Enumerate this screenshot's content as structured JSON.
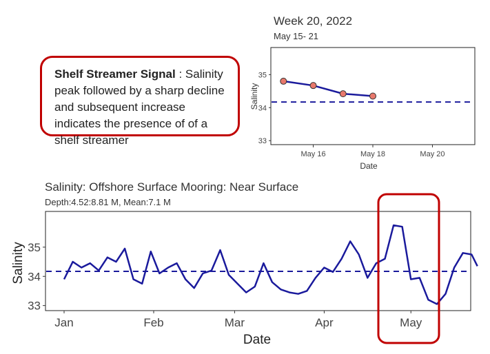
{
  "callout": {
    "title": "Shelf Streamer Signal",
    "text": " : Salinity peak followed by a sharp decline and subsequent increase indicates the presence of of a shelf streamer"
  },
  "chart_data": [
    {
      "type": "line",
      "title": "Week 20, 2022",
      "subtitle": "May 15- 21",
      "xlabel": "Date",
      "ylabel": "Salinity",
      "x_ticks": [
        "May 16",
        "May 18",
        "May 20"
      ],
      "y_ticks": [
        "33",
        "34",
        "35"
      ],
      "ylim": [
        32.9,
        35.8
      ],
      "xlim": [
        14.6,
        21.4
      ],
      "grid": false,
      "line_color": "#1a1a9c",
      "point_color": "#e8786c",
      "series": [
        {
          "x": [
            15.0,
            16.0,
            17.0,
            18.0
          ],
          "y": [
            34.8,
            34.67,
            34.42,
            34.35
          ]
        }
      ],
      "mean_line": 34.17
    },
    {
      "type": "line",
      "title": "Salinity: Offshore Surface Mooring: Near Surface",
      "subtitle": "Depth:4.52:8.81 M, Mean:7.1 M",
      "xlabel": "Date",
      "ylabel": "Salinity",
      "x_ticks": [
        "Jan",
        "Feb",
        "Mar",
        "Apr",
        "May"
      ],
      "y_ticks": [
        "33",
        "34",
        "35"
      ],
      "ylim": [
        32.85,
        36.2
      ],
      "grid": false,
      "line_color": "#1a1a9c",
      "highlight": "May",
      "highlight_color": "#c00000",
      "mean_line": 34.17,
      "series": [
        {
          "x": [
            "Jan 1",
            "Jan 4",
            "Jan 7",
            "Jan 10",
            "Jan 13",
            "Jan 16",
            "Jan 19",
            "Jan 22",
            "Jan 25",
            "Jan 28",
            "Jan 31",
            "Feb 3",
            "Feb 6",
            "Feb 9",
            "Feb 12",
            "Feb 15",
            "Feb 18",
            "Feb 21",
            "Feb 24",
            "Feb 27",
            "Mar 2",
            "Mar 5",
            "Mar 8",
            "Mar 11",
            "Mar 14",
            "Mar 17",
            "Mar 20",
            "Mar 23",
            "Mar 26",
            "Mar 29",
            "Apr 1",
            "Apr 4",
            "Apr 7",
            "Apr 10",
            "Apr 13",
            "Apr 16",
            "Apr 19",
            "Apr 22",
            "Apr 25",
            "Apr 28",
            "May 1",
            "May 4",
            "May 7",
            "May 10",
            "May 13",
            "May 16",
            "May 19",
            "May 22",
            "May 24"
          ],
          "y": [
            33.9,
            34.5,
            34.3,
            34.45,
            34.2,
            34.65,
            34.5,
            34.95,
            33.9,
            33.75,
            34.85,
            34.1,
            34.3,
            34.45,
            33.9,
            33.6,
            34.1,
            34.2,
            34.9,
            34.05,
            33.75,
            33.45,
            33.65,
            34.45,
            33.8,
            33.55,
            33.45,
            33.4,
            33.5,
            33.95,
            34.3,
            34.15,
            34.6,
            35.2,
            34.75,
            33.95,
            34.45,
            34.6,
            35.75,
            35.7,
            33.9,
            33.95,
            33.2,
            33.05,
            33.4,
            34.3,
            34.8,
            34.75,
            34.35
          ]
        }
      ]
    }
  ]
}
